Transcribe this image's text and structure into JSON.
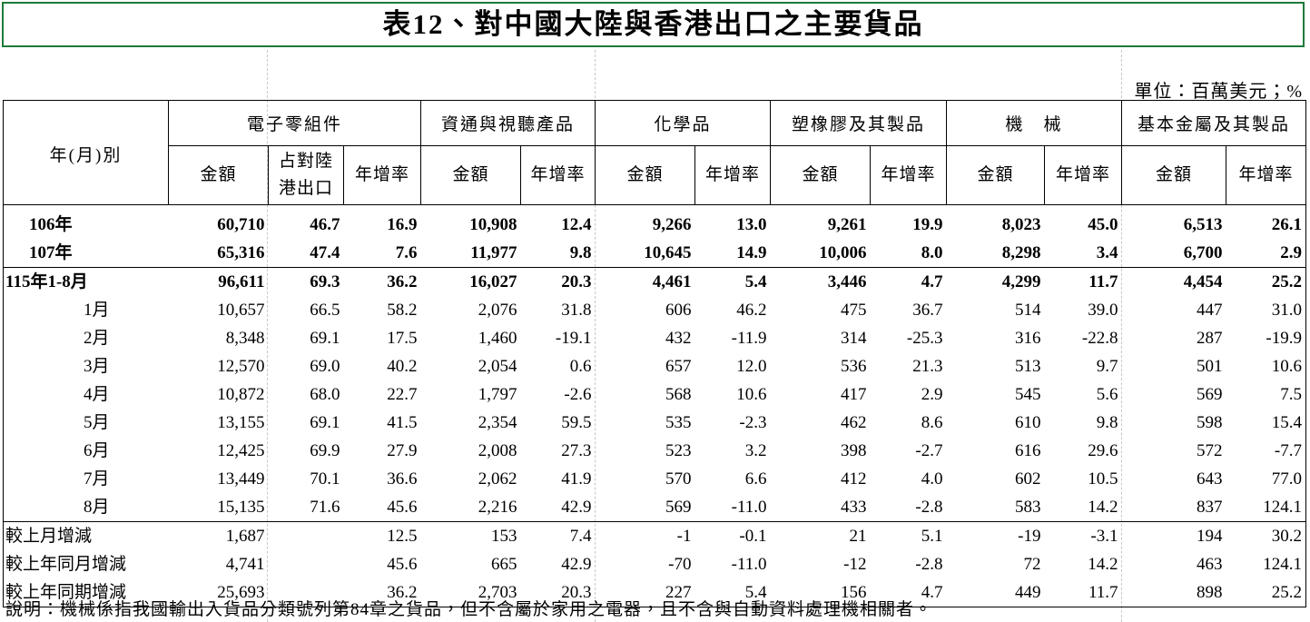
{
  "title": "表12、對中國大陸與香港出口之主要貨品",
  "unit": "單位：百萬美元；%",
  "header": {
    "row_label": "年(月)別",
    "groups": [
      "電子零組件",
      "資通與視聽產品",
      "化學品",
      "塑橡膠及其製品",
      "機　械",
      "基本金屬及其製品"
    ],
    "columns": [
      "金額",
      "占對陸港出口",
      "年增率",
      "金額",
      "年增率",
      "金額",
      "年增率",
      "金額",
      "年增率",
      "金額",
      "年增率",
      "金額",
      "年增率"
    ]
  },
  "rows": [
    [
      "106年",
      "60,710",
      "46.7",
      "16.9",
      "10,908",
      "12.4",
      "9,266",
      "13.0",
      "9,261",
      "19.9",
      "8,023",
      "45.0",
      "6,513",
      "26.1"
    ],
    [
      "107年",
      "65,316",
      "47.4",
      "7.6",
      "11,977",
      "9.8",
      "10,645",
      "14.9",
      "10,006",
      "8.0",
      "8,298",
      "3.4",
      "6,700",
      "2.9"
    ],
    [
      "115年1-8月",
      "96,611",
      "69.3",
      "36.2",
      "16,027",
      "20.3",
      "4,461",
      "5.4",
      "3,446",
      "4.7",
      "4,299",
      "11.7",
      "4,454",
      "25.2"
    ],
    [
      "1月",
      "10,657",
      "66.5",
      "58.2",
      "2,076",
      "31.8",
      "606",
      "46.2",
      "475",
      "36.7",
      "514",
      "39.0",
      "447",
      "31.0"
    ],
    [
      "2月",
      "8,348",
      "69.1",
      "17.5",
      "1,460",
      "-19.1",
      "432",
      "-11.9",
      "314",
      "-25.3",
      "316",
      "-22.8",
      "287",
      "-19.9"
    ],
    [
      "3月",
      "12,570",
      "69.0",
      "40.2",
      "2,054",
      "0.6",
      "657",
      "12.0",
      "536",
      "21.3",
      "513",
      "9.7",
      "501",
      "10.6"
    ],
    [
      "4月",
      "10,872",
      "68.0",
      "22.7",
      "1,797",
      "-2.6",
      "568",
      "10.6",
      "417",
      "2.9",
      "545",
      "5.6",
      "569",
      "7.5"
    ],
    [
      "5月",
      "13,155",
      "69.1",
      "41.5",
      "2,354",
      "59.5",
      "535",
      "-2.3",
      "462",
      "8.6",
      "610",
      "9.8",
      "598",
      "15.4"
    ],
    [
      "6月",
      "12,425",
      "69.9",
      "27.9",
      "2,008",
      "27.3",
      "523",
      "3.2",
      "398",
      "-2.7",
      "616",
      "29.6",
      "572",
      "-7.7"
    ],
    [
      "7月",
      "13,449",
      "70.1",
      "36.6",
      "2,062",
      "41.9",
      "570",
      "6.6",
      "412",
      "4.0",
      "602",
      "10.5",
      "643",
      "77.0"
    ],
    [
      "8月",
      "15,135",
      "71.6",
      "45.6",
      "2,216",
      "42.9",
      "569",
      "-11.0",
      "433",
      "-2.8",
      "583",
      "14.2",
      "837",
      "124.1"
    ],
    [
      "較上月增減",
      "1,687",
      null,
      "12.5",
      "153",
      "7.4",
      "-1",
      "-0.1",
      "21",
      "5.1",
      "-19",
      "-3.1",
      "194",
      "30.2"
    ],
    [
      "較上年同月增減",
      "4,741",
      null,
      "45.6",
      "665",
      "42.9",
      "-70",
      "-11.0",
      "-12",
      "-2.8",
      "72",
      "14.2",
      "463",
      "124.1"
    ],
    [
      "較上年同期增減",
      "25,693",
      null,
      "36.2",
      "2,703",
      "20.3",
      "227",
      "5.4",
      "156",
      "4.7",
      "449",
      "11.7",
      "898",
      "25.2"
    ]
  ],
  "note": "說明：機械係指我國輸出入貨品分類號列第84章之貨品，但不含屬於家用之電器，且不含與自動資料處理機相關者。"
}
